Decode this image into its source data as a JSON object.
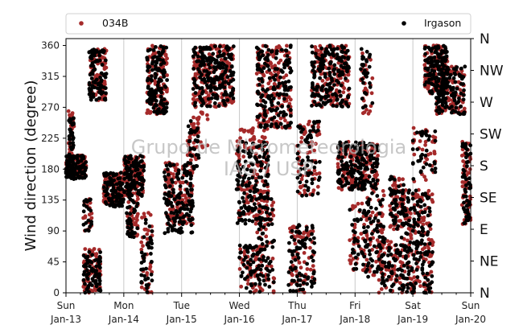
{
  "chart_data": {
    "type": "scatter",
    "title": "",
    "ylabel": "Wind direction (degree)",
    "xlabel": "",
    "ylim": [
      0,
      370
    ],
    "yticks": [
      0,
      45,
      90,
      135,
      180,
      225,
      270,
      315,
      360
    ],
    "xlim": [
      0,
      7
    ],
    "xticks": [
      {
        "day": "Sun",
        "date": "Jan-13"
      },
      {
        "day": "Mon",
        "date": "Jan-14"
      },
      {
        "day": "Tue",
        "date": "Jan-15"
      },
      {
        "day": "Wed",
        "date": "Jan-16"
      },
      {
        "day": "Thu",
        "date": "Jan-17"
      },
      {
        "day": "Fri",
        "date": "Jan-18"
      },
      {
        "day": "Sat",
        "date": "Jan-19"
      },
      {
        "day": "Sun",
        "date": "Jan-20"
      }
    ],
    "secondary_axis": [
      "N",
      "NE",
      "E",
      "SE",
      "S",
      "SW",
      "W",
      "NW",
      "N"
    ],
    "grid": "vertical",
    "legend_placement": "top",
    "watermark": [
      "Grupo de Micrometeorologia",
      "IAG / USP"
    ],
    "series": [
      {
        "name": "034B",
        "color": "#a52a2a",
        "segments": [
          {
            "x": [
              0.0,
              0.35
            ],
            "y": [
              170,
              200
            ],
            "n": 120
          },
          {
            "x": [
              0.04,
              0.14
            ],
            "y": [
              195,
              265
            ],
            "n": 35
          },
          {
            "x": [
              0.3,
              0.6
            ],
            "y": [
              0,
              65
            ],
            "n": 70
          },
          {
            "x": [
              0.3,
              0.45
            ],
            "y": [
              90,
              140
            ],
            "n": 20
          },
          {
            "x": [
              0.4,
              0.7
            ],
            "y": [
              280,
              355
            ],
            "n": 90
          },
          {
            "x": [
              0.65,
              1.0
            ],
            "y": [
              130,
              175
            ],
            "n": 90
          },
          {
            "x": [
              1.0,
              1.35
            ],
            "y": [
              140,
              200
            ],
            "n": 110
          },
          {
            "x": [
              1.05,
              1.25
            ],
            "y": [
              80,
              140
            ],
            "n": 35
          },
          {
            "x": [
              1.3,
              1.5
            ],
            "y": [
              0,
              120
            ],
            "n": 40
          },
          {
            "x": [
              1.4,
              1.75
            ],
            "y": [
              260,
              360
            ],
            "n": 130
          },
          {
            "x": [
              1.7,
              2.2
            ],
            "y": [
              100,
              190
            ],
            "n": 140
          },
          {
            "x": [
              2.1,
              2.3
            ],
            "y": [
              180,
              250
            ],
            "n": 30
          },
          {
            "x": [
              2.2,
              2.5
            ],
            "y": [
              210,
              300
            ],
            "n": 30
          },
          {
            "x": [
              2.2,
              2.9
            ],
            "y": [
              270,
              360
            ],
            "n": 200
          },
          {
            "x": [
              2.95,
              3.5
            ],
            "y": [
              100,
              240
            ],
            "n": 140
          },
          {
            "x": [
              3.0,
              3.4
            ],
            "y": [
              0,
              70
            ],
            "n": 55
          },
          {
            "x": [
              3.3,
              3.6
            ],
            "y": [
              0,
              140
            ],
            "n": 55
          },
          {
            "x": [
              3.3,
              3.9
            ],
            "y": [
              240,
              360
            ],
            "n": 160
          },
          {
            "x": [
              3.85,
              4.3
            ],
            "y": [
              0,
              100
            ],
            "n": 80
          },
          {
            "x": [
              4.0,
              4.4
            ],
            "y": [
              140,
              250
            ],
            "n": 60
          },
          {
            "x": [
              4.25,
              4.9
            ],
            "y": [
              270,
              360
            ],
            "n": 170
          },
          {
            "x": [
              4.7,
              5.4
            ],
            "y": [
              150,
              220
            ],
            "n": 170
          },
          {
            "x": [
              4.9,
              5.2
            ],
            "y": [
              30,
              130
            ],
            "n": 40
          },
          {
            "x": [
              5.2,
              5.5
            ],
            "y": [
              20,
              150
            ],
            "n": 60
          },
          {
            "x": [
              5.1,
              5.3
            ],
            "y": [
              260,
              360
            ],
            "n": 30
          },
          {
            "x": [
              5.4,
              5.8
            ],
            "y": [
              0,
              80
            ],
            "n": 55
          },
          {
            "x": [
              5.6,
              5.85
            ],
            "y": [
              90,
              170
            ],
            "n": 50
          },
          {
            "x": [
              5.8,
              6.35
            ],
            "y": [
              0,
              150
            ],
            "n": 160
          },
          {
            "x": [
              6.0,
              6.4
            ],
            "y": [
              160,
              240
            ],
            "n": 35
          },
          {
            "x": [
              6.2,
              6.6
            ],
            "y": [
              290,
              360
            ],
            "n": 120
          },
          {
            "x": [
              6.4,
              6.9
            ],
            "y": [
              260,
              330
            ],
            "n": 110
          },
          {
            "x": [
              6.85,
              7.0
            ],
            "y": [
              100,
              220
            ],
            "n": 60
          }
        ]
      },
      {
        "name": "Irgason",
        "color": "#000000",
        "segments": [
          {
            "x": [
              0.0,
              0.35
            ],
            "y": [
              165,
              200
            ],
            "n": 110
          },
          {
            "x": [
              0.04,
              0.14
            ],
            "y": [
              195,
              255
            ],
            "n": 30
          },
          {
            "x": [
              0.3,
              0.6
            ],
            "y": [
              0,
              60
            ],
            "n": 70
          },
          {
            "x": [
              0.3,
              0.45
            ],
            "y": [
              90,
              140
            ],
            "n": 20
          },
          {
            "x": [
              0.4,
              0.7
            ],
            "y": [
              280,
              355
            ],
            "n": 90
          },
          {
            "x": [
              0.65,
              1.0
            ],
            "y": [
              125,
              175
            ],
            "n": 90
          },
          {
            "x": [
              1.0,
              1.35
            ],
            "y": [
              140,
              200
            ],
            "n": 110
          },
          {
            "x": [
              1.05,
              1.25
            ],
            "y": [
              80,
              140
            ],
            "n": 35
          },
          {
            "x": [
              1.3,
              1.5
            ],
            "y": [
              0,
              120
            ],
            "n": 40
          },
          {
            "x": [
              1.4,
              1.75
            ],
            "y": [
              260,
              360
            ],
            "n": 130
          },
          {
            "x": [
              1.7,
              2.2
            ],
            "y": [
              85,
              190
            ],
            "n": 140
          },
          {
            "x": [
              2.1,
              2.3
            ],
            "y": [
              180,
              250
            ],
            "n": 30
          },
          {
            "x": [
              2.2,
              2.9
            ],
            "y": [
              270,
              360
            ],
            "n": 200
          },
          {
            "x": [
              2.95,
              3.5
            ],
            "y": [
              100,
              220
            ],
            "n": 140
          },
          {
            "x": [
              3.0,
              3.4
            ],
            "y": [
              0,
              70
            ],
            "n": 55
          },
          {
            "x": [
              3.3,
              3.6
            ],
            "y": [
              0,
              140
            ],
            "n": 55
          },
          {
            "x": [
              3.3,
              3.9
            ],
            "y": [
              240,
              360
            ],
            "n": 160
          },
          {
            "x": [
              3.85,
              4.3
            ],
            "y": [
              0,
              100
            ],
            "n": 80
          },
          {
            "x": [
              4.0,
              4.4
            ],
            "y": [
              140,
              250
            ],
            "n": 60
          },
          {
            "x": [
              4.25,
              4.9
            ],
            "y": [
              270,
              360
            ],
            "n": 170
          },
          {
            "x": [
              4.7,
              5.4
            ],
            "y": [
              150,
              220
            ],
            "n": 170
          },
          {
            "x": [
              4.9,
              5.2
            ],
            "y": [
              30,
              130
            ],
            "n": 40
          },
          {
            "x": [
              5.2,
              5.5
            ],
            "y": [
              20,
              150
            ],
            "n": 60
          },
          {
            "x": [
              5.1,
              5.3
            ],
            "y": [
              260,
              360
            ],
            "n": 30
          },
          {
            "x": [
              5.4,
              5.8
            ],
            "y": [
              0,
              80
            ],
            "n": 55
          },
          {
            "x": [
              5.6,
              5.85
            ],
            "y": [
              90,
              170
            ],
            "n": 50
          },
          {
            "x": [
              5.8,
              6.35
            ],
            "y": [
              0,
              150
            ],
            "n": 160
          },
          {
            "x": [
              6.0,
              6.4
            ],
            "y": [
              160,
              240
            ],
            "n": 35
          },
          {
            "x": [
              6.2,
              6.6
            ],
            "y": [
              290,
              360
            ],
            "n": 120
          },
          {
            "x": [
              6.4,
              6.9
            ],
            "y": [
              260,
              330
            ],
            "n": 110
          },
          {
            "x": [
              6.85,
              7.0
            ],
            "y": [
              100,
              220
            ],
            "n": 60
          }
        ]
      }
    ]
  }
}
